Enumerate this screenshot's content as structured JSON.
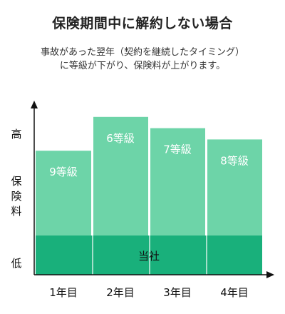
{
  "title": "保険期間中に解約しない場合",
  "subtitle": [
    "事故があった翌年（契約を継続したタイミング）",
    "に等級が下がり、保険料が上がります。"
  ],
  "colors": {
    "bar": "#6dd4a8",
    "base": "#19b07b",
    "axis": "#111111",
    "label_on_bar": "#ffffff"
  },
  "chart_data": {
    "type": "bar",
    "title": "保険期間中に解約しない場合",
    "categories": [
      "1年目",
      "2年目",
      "3年目",
      "4年目"
    ],
    "values": [
      9,
      6,
      7,
      8
    ],
    "bar_labels": [
      "9等級",
      "6等級",
      "7等級",
      "8等級"
    ],
    "base_band_label": "当社",
    "ylabel": "保険料",
    "y_high_label": "高",
    "y_low_label": "低",
    "xlabel": "",
    "y_inverted": true,
    "ylim": [
      5,
      20
    ],
    "grid": false,
    "legend": "none"
  }
}
